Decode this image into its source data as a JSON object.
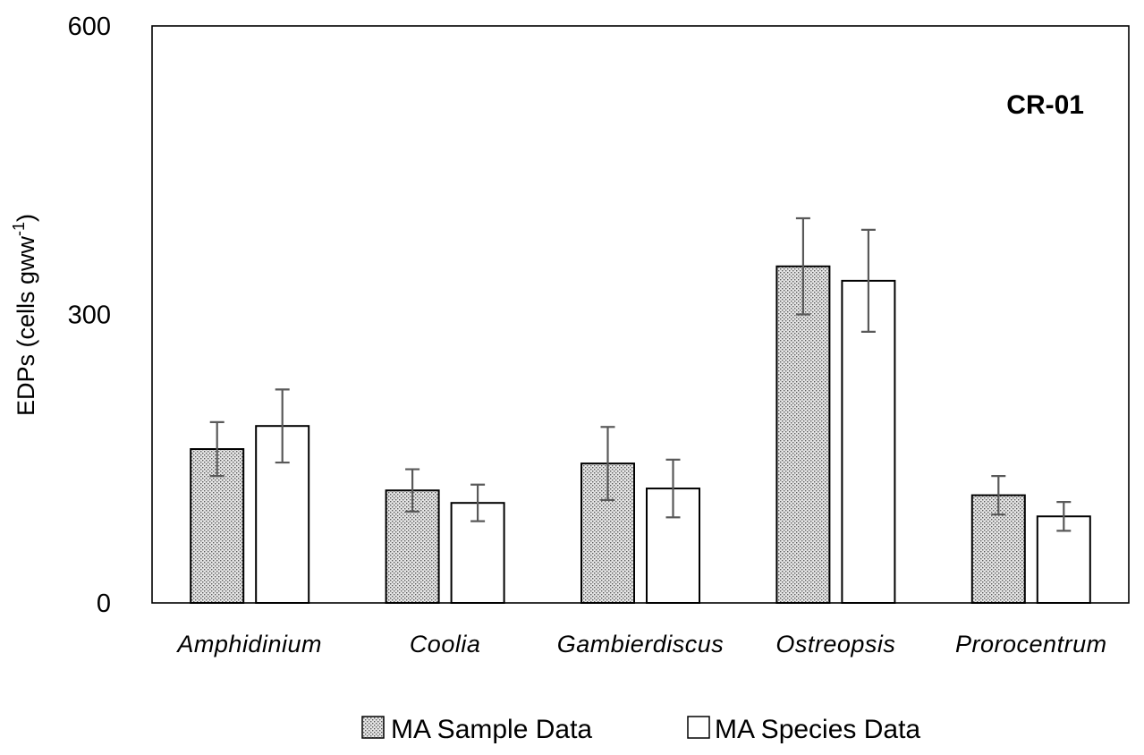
{
  "chart_data": {
    "type": "bar",
    "title": "",
    "annotation": "CR-01",
    "ylabel_main": "EDPs (cells gww",
    "ylabel_sup": "-1",
    "ylabel_close": ")",
    "xlabel": "",
    "ylim": [
      0,
      600
    ],
    "yticks": [
      0,
      300,
      600
    ],
    "grid": false,
    "legend_position": "bottom",
    "categories": [
      "Amphidinium",
      "Coolia",
      "Gambierdiscus",
      "Ostreopsis",
      "Prorocentrum"
    ],
    "series": [
      {
        "name": "MA Sample Data",
        "pattern": "dotted",
        "values": [
          160,
          117,
          145,
          350,
          112
        ],
        "error": [
          28,
          22,
          38,
          50,
          20
        ]
      },
      {
        "name": "MA Species Data",
        "pattern": "white",
        "values": [
          184,
          104,
          119,
          335,
          90
        ],
        "error": [
          38,
          19,
          30,
          53,
          15
        ]
      }
    ]
  },
  "colors": {
    "bar_stroke": "#000000",
    "dot_fill": "#e6e6e6",
    "dot_color": "#5a5a5a",
    "white_fill": "#ffffff",
    "error_bar": "#595959",
    "axis": "#000000"
  }
}
